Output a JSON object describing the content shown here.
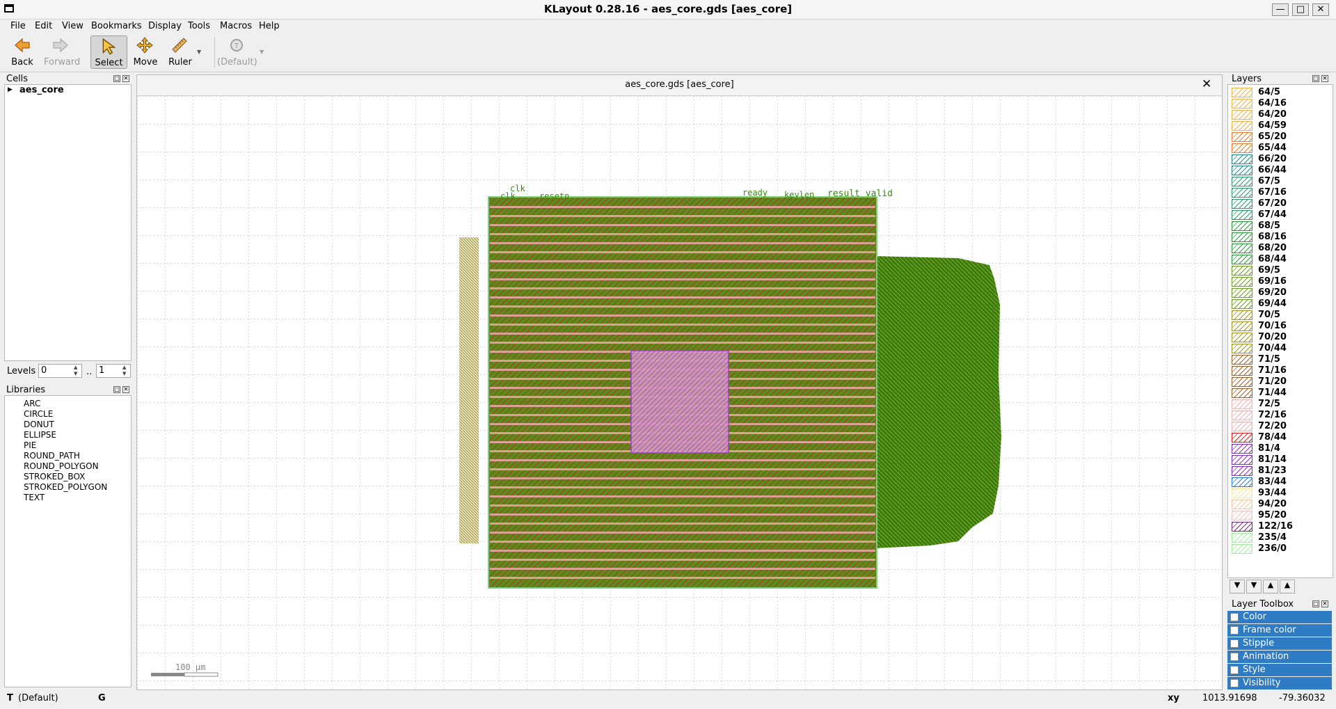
{
  "window": {
    "title": "KLayout 0.28.16 - aes_core.gds [aes_core]",
    "controls": [
      "minimize",
      "maximize",
      "close"
    ]
  },
  "menu": [
    "File",
    "Edit",
    "View",
    "Bookmarks",
    "Display",
    "Tools",
    "Macros",
    "Help"
  ],
  "toolbar": {
    "back": "Back",
    "forward": "Forward",
    "select": "Select",
    "move": "Move",
    "ruler": "Ruler",
    "default": "(Default)"
  },
  "cells": {
    "title": "Cells",
    "tree": [
      "aes_core"
    ]
  },
  "levels": {
    "label": "Levels",
    "from": "0",
    "separator": "..",
    "to": "1"
  },
  "libraries": {
    "title": "Libraries",
    "items": [
      "ARC",
      "CIRCLE",
      "DONUT",
      "ELLIPSE",
      "PIE",
      "ROUND_PATH",
      "ROUND_POLYGON",
      "STROKED_BOX",
      "STROKED_POLYGON",
      "TEXT"
    ]
  },
  "canvas": {
    "tab_title": "aes_core.gds [aes_core]",
    "scale_label": "100 µm",
    "pin_labels": [
      "clk",
      "clk",
      "resetn",
      "result_valid",
      "ready",
      "keylen"
    ],
    "colors": {
      "background": "#ffffff",
      "grid": "#b0b0b0",
      "metal_green": "#4e8a10",
      "metal_pink": "#f0a0a0",
      "macro_purple": "#a040d0",
      "olive": "#8a8a20"
    }
  },
  "layers": {
    "title": "Layers",
    "items": [
      {
        "label": "64/5",
        "color": "#f7b343"
      },
      {
        "label": "64/16",
        "color": "#f7b343"
      },
      {
        "label": "64/20",
        "color": "#f7b343"
      },
      {
        "label": "64/59",
        "color": "#f7b343"
      },
      {
        "label": "65/20",
        "color": "#f07c2a"
      },
      {
        "label": "65/44",
        "color": "#f07c2a"
      },
      {
        "label": "66/20",
        "color": "#1e8a8a"
      },
      {
        "label": "66/44",
        "color": "#1e8a8a"
      },
      {
        "label": "67/5",
        "color": "#2a9a6a"
      },
      {
        "label": "67/16",
        "color": "#2a9a6a"
      },
      {
        "label": "67/20",
        "color": "#2a9a6a"
      },
      {
        "label": "67/44",
        "color": "#2a9a6a"
      },
      {
        "label": "68/5",
        "color": "#2a9a3a"
      },
      {
        "label": "68/16",
        "color": "#2a9a3a"
      },
      {
        "label": "68/20",
        "color": "#2a9a3a"
      },
      {
        "label": "68/44",
        "color": "#2a9a3a"
      },
      {
        "label": "69/5",
        "color": "#6aa01a"
      },
      {
        "label": "69/16",
        "color": "#6aa01a"
      },
      {
        "label": "69/20",
        "color": "#6aa01a"
      },
      {
        "label": "69/44",
        "color": "#6aa01a"
      },
      {
        "label": "70/5",
        "color": "#a0961a"
      },
      {
        "label": "70/16",
        "color": "#a0961a"
      },
      {
        "label": "70/20",
        "color": "#a0961a"
      },
      {
        "label": "70/44",
        "color": "#a0961a"
      },
      {
        "label": "71/5",
        "color": "#a0602a"
      },
      {
        "label": "71/16",
        "color": "#a0602a"
      },
      {
        "label": "71/20",
        "color": "#a0602a"
      },
      {
        "label": "71/44",
        "color": "#a0602a"
      },
      {
        "label": "72/5",
        "color": "#f3b0b0"
      },
      {
        "label": "72/16",
        "color": "#f3b0b0"
      },
      {
        "label": "72/20",
        "color": "#f3b0b0"
      },
      {
        "label": "78/44",
        "color": "#e02020"
      },
      {
        "label": "81/4",
        "color": "#8a2ad0"
      },
      {
        "label": "81/14",
        "color": "#8a2ad0"
      },
      {
        "label": "81/23",
        "color": "#8a2ad0"
      },
      {
        "label": "83/44",
        "color": "#2a7ad0"
      },
      {
        "label": "93/44",
        "color": "#f7e7a0"
      },
      {
        "label": "94/20",
        "color": "#f3c8a0"
      },
      {
        "label": "95/20",
        "color": "#f3c0c0"
      },
      {
        "label": "122/16",
        "color": "#7a2a7a"
      },
      {
        "label": "235/4",
        "color": "#a0f0a0"
      },
      {
        "label": "236/0",
        "color": "#a0f0a0"
      }
    ]
  },
  "layer_toolbox": {
    "title": "Layer Toolbox",
    "items": [
      "Color",
      "Frame color",
      "Stipple",
      "Animation",
      "Style",
      "Visibility"
    ]
  },
  "status": {
    "mode": "T",
    "mode_value": "(Default)",
    "grid_flag": "G",
    "coord_label": "xy",
    "x": "1013.91698",
    "y": "-79.36032"
  }
}
